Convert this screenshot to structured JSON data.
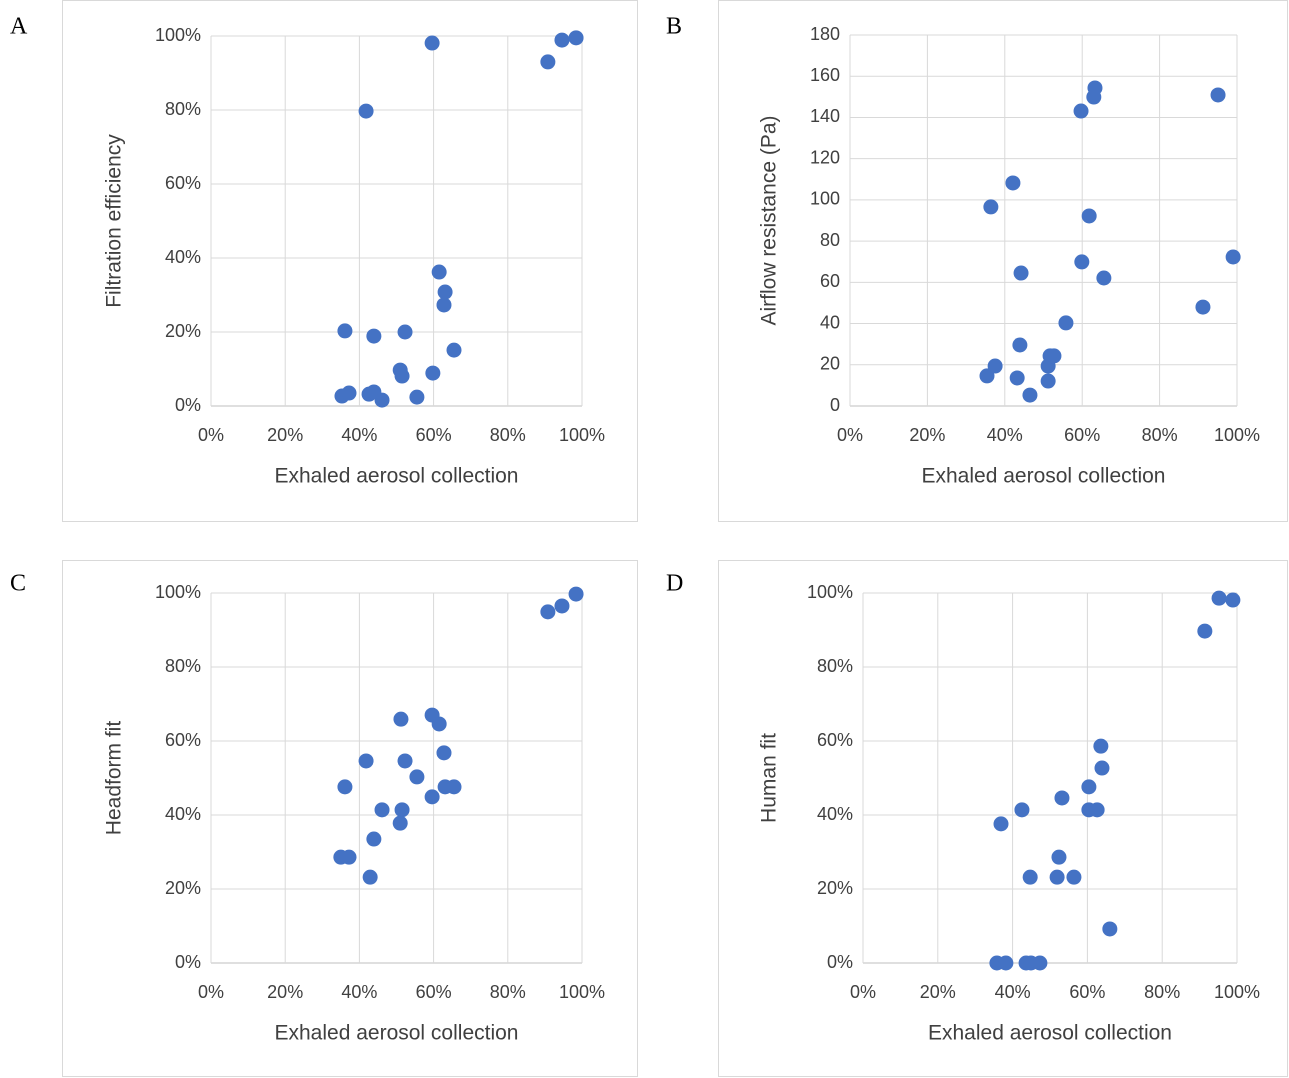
{
  "chart_data": [
    {
      "type": "scatter",
      "panel_label": "A",
      "x_label": "Exhaled aerosol collection",
      "y_label": "Filtration efficiency",
      "color": "#4472c4",
      "grid": true,
      "x": [
        35.3,
        37.2,
        36.1,
        41.8,
        42.6,
        43.9,
        43.9,
        46.1,
        51.0,
        51.5,
        52.3,
        55.5,
        59.6,
        59.8,
        61.5,
        63.1,
        62.8,
        65.5,
        90.8,
        94.6,
        98.4
      ],
      "y": [
        2.7,
        3.5,
        20.3,
        79.7,
        3.2,
        3.8,
        18.9,
        1.6,
        9.7,
        8.1,
        20,
        2.4,
        98.1,
        8.9,
        36.2,
        30.8,
        27.3,
        15.1,
        93,
        98.9,
        99.5
      ],
      "xlim": [
        0,
        100
      ],
      "ylim": [
        0,
        100
      ],
      "xticks": [
        {
          "value": 0,
          "label": "0%"
        },
        {
          "value": 20,
          "label": "20%"
        },
        {
          "value": 40,
          "label": "40%"
        },
        {
          "value": 60,
          "label": "60%"
        },
        {
          "value": 80,
          "label": "80%"
        },
        {
          "value": 100,
          "label": "100%"
        }
      ],
      "yticks": [
        {
          "value": 0,
          "label": "0%"
        },
        {
          "value": 20,
          "label": "20%"
        },
        {
          "value": 40,
          "label": "40%"
        },
        {
          "value": 60,
          "label": "60%"
        },
        {
          "value": 80,
          "label": "80%"
        },
        {
          "value": 100,
          "label": "100%"
        }
      ]
    },
    {
      "type": "scatter",
      "panel_label": "B",
      "x_label": "Exhaled aerosol collection",
      "y_label": "Airflow resistance (Pa)",
      "color": "#4472c4",
      "grid": true,
      "x": [
        35.4,
        37.5,
        36.4,
        42.1,
        43.2,
        44.2,
        43.9,
        46.5,
        51.2,
        51.7,
        52.7,
        51.2,
        55.8,
        59.7,
        59.9,
        61.8,
        63.0,
        63.3,
        65.6,
        91.2,
        95.1,
        99
      ],
      "y": [
        14.6,
        19.4,
        96.6,
        108.2,
        13.6,
        64.5,
        29.6,
        5.3,
        19.4,
        24.3,
        24.3,
        12.1,
        40.3,
        143.1,
        69.9,
        92.2,
        149.9,
        154.3,
        62.1,
        48,
        150.9,
        72.3
      ],
      "xlim": [
        0,
        100
      ],
      "ylim": [
        0,
        180
      ],
      "xticks": [
        {
          "value": 0,
          "label": "0%"
        },
        {
          "value": 20,
          "label": "20%"
        },
        {
          "value": 40,
          "label": "40%"
        },
        {
          "value": 60,
          "label": "60%"
        },
        {
          "value": 80,
          "label": "80%"
        },
        {
          "value": 100,
          "label": "100%"
        }
      ],
      "yticks": [
        0,
        20,
        40,
        60,
        80,
        100,
        120,
        140,
        160,
        180
      ]
    },
    {
      "type": "scatter",
      "panel_label": "C",
      "x_label": "Exhaled aerosol collection",
      "y_label": "Headform fit",
      "color": "#4472c4",
      "grid": true,
      "x": [
        35.0,
        37.2,
        36.1,
        41.8,
        42.9,
        43.9,
        46.1,
        51.0,
        51.5,
        51.2,
        52.3,
        55.5,
        59.6,
        59.6,
        61.5,
        62.8,
        63.1,
        65.5,
        90.8,
        94.6,
        98.4
      ],
      "y": [
        28.6,
        28.6,
        47.6,
        54.6,
        23.2,
        33.5,
        41.4,
        37.8,
        41.4,
        65.9,
        54.6,
        50.3,
        44.9,
        67.0,
        64.6,
        56.8,
        47.6,
        47.6,
        94.9,
        96.5,
        99.7
      ],
      "xlim": [
        0,
        100
      ],
      "ylim": [
        0,
        100
      ],
      "xticks": [
        {
          "value": 0,
          "label": "0%"
        },
        {
          "value": 20,
          "label": "20%"
        },
        {
          "value": 40,
          "label": "40%"
        },
        {
          "value": 60,
          "label": "60%"
        },
        {
          "value": 80,
          "label": "80%"
        },
        {
          "value": 100,
          "label": "100%"
        }
      ],
      "yticks": [
        {
          "value": 0,
          "label": "0%"
        },
        {
          "value": 20,
          "label": "20%"
        },
        {
          "value": 40,
          "label": "40%"
        },
        {
          "value": 60,
          "label": "60%"
        },
        {
          "value": 80,
          "label": "80%"
        },
        {
          "value": 100,
          "label": "100%"
        }
      ]
    },
    {
      "type": "scatter",
      "panel_label": "D",
      "x_label": "Exhaled aerosol collection",
      "y_label": "Human fit",
      "color": "#4472c4",
      "grid": true,
      "x": [
        35.8,
        38.2,
        36.9,
        42.5,
        43.6,
        44.9,
        44.7,
        47.3,
        51.9,
        52.4,
        53.2,
        56.4,
        60.4,
        60.4,
        62.6,
        63.6,
        63.9,
        66.0,
        91.4,
        95.2,
        98.9
      ],
      "y": [
        0,
        0,
        37.6,
        41.4,
        0,
        0,
        23.2,
        0,
        23.2,
        28.6,
        44.6,
        23.2,
        47.6,
        41.4,
        41.4,
        58.6,
        52.7,
        9.2,
        89.7,
        98.6,
        98.1
      ],
      "xlim": [
        0,
        100
      ],
      "ylim": [
        0,
        100
      ],
      "xticks": [
        {
          "value": 0,
          "label": "0%"
        },
        {
          "value": 20,
          "label": "20%"
        },
        {
          "value": 40,
          "label": "40%"
        },
        {
          "value": 60,
          "label": "60%"
        },
        {
          "value": 80,
          "label": "80%"
        },
        {
          "value": 100,
          "label": "100%"
        }
      ],
      "yticks": [
        {
          "value": 0,
          "label": "0%"
        },
        {
          "value": 20,
          "label": "20%"
        },
        {
          "value": 40,
          "label": "40%"
        },
        {
          "value": 60,
          "label": "60%"
        },
        {
          "value": 80,
          "label": "80%"
        },
        {
          "value": 100,
          "label": "100%"
        }
      ]
    }
  ]
}
